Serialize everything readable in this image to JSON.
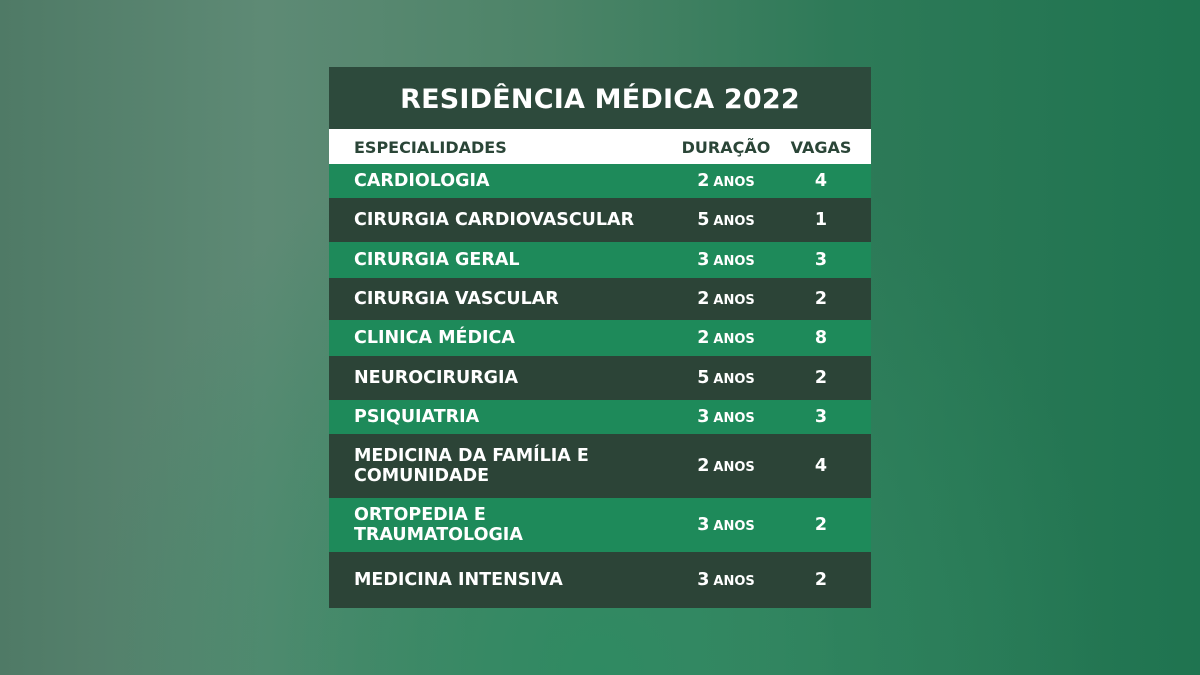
{
  "title": "RESIDÊNCIA MÉDICA 2022",
  "headers": {
    "especialidades": "ESPECIALIDADES",
    "duracao": "DURAÇÃO",
    "vagas": "VAGAS"
  },
  "unit": "ANOS",
  "rows": [
    {
      "name": [
        "CARDIOLOGIA"
      ],
      "duracao": "2",
      "vagas": "4",
      "shade": "green"
    },
    {
      "name": [
        "CIRURGIA CARDIOVASCULAR"
      ],
      "duracao": "5",
      "vagas": "1",
      "shade": "dark"
    },
    {
      "name": [
        "CIRURGIA GERAL"
      ],
      "duracao": "3",
      "vagas": "3",
      "shade": "green"
    },
    {
      "name": [
        "CIRURGIA VASCULAR"
      ],
      "duracao": "2",
      "vagas": "2",
      "shade": "dark"
    },
    {
      "name": [
        "CLINICA MÉDICA"
      ],
      "duracao": "2",
      "vagas": "8",
      "shade": "green"
    },
    {
      "name": [
        "NEUROCIRURGIA"
      ],
      "duracao": "5",
      "vagas": "2",
      "shade": "dark"
    },
    {
      "name": [
        "PSIQUIATRIA"
      ],
      "duracao": "3",
      "vagas": "3",
      "shade": "green"
    },
    {
      "name": [
        "MEDICINA DA FAMÍLIA E",
        "COMUNIDADE"
      ],
      "duracao": "2",
      "vagas": "4",
      "shade": "dark"
    },
    {
      "name": [
        "ORTOPEDIA E",
        "TRAUMATOLOGIA"
      ],
      "duracao": "3",
      "vagas": "2",
      "shade": "green"
    },
    {
      "name": [
        "MEDICINA INTENSIVA"
      ],
      "duracao": "3",
      "vagas": "2",
      "shade": "dark"
    }
  ]
}
